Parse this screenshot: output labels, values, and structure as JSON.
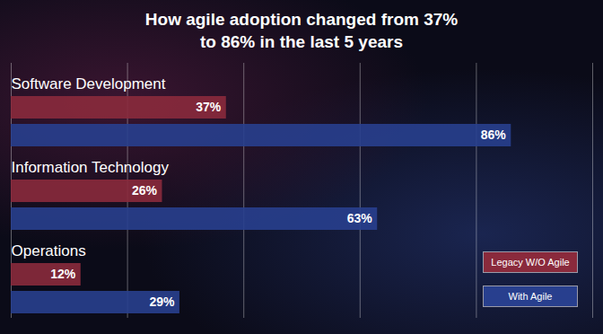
{
  "chart_data": {
    "type": "bar",
    "title": "How agile adoption changed from 37% to 86% in the last 5 years",
    "orientation": "horizontal",
    "categories": [
      "Software Development",
      "Information Technology",
      "Operations"
    ],
    "series": [
      {
        "name": "Legacy W/O Agile",
        "color": "#8a2a3c",
        "values": [
          37,
          26,
          12
        ],
        "value_labels": [
          "37%",
          "26%",
          "12%"
        ]
      },
      {
        "name": "With Agile",
        "color": "#283f8e",
        "values": [
          86,
          63,
          29
        ],
        "value_labels": [
          "86%",
          "63%",
          "29%"
        ]
      }
    ],
    "xlim": [
      0,
      100
    ],
    "xticks": [
      0,
      20,
      40,
      60,
      80,
      100
    ],
    "grid": true,
    "tick_labels": false,
    "data_labels": true,
    "legend": "bottom-right"
  }
}
